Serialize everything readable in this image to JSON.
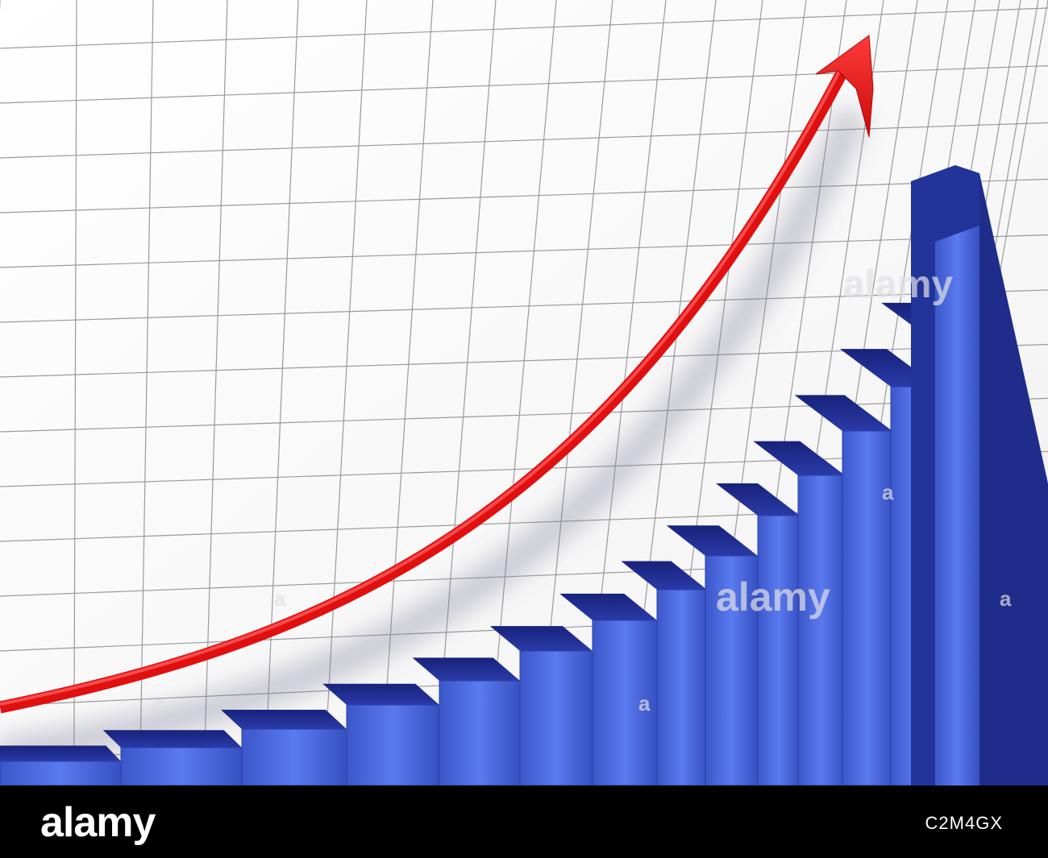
{
  "image": {
    "subject": "3d-bar-chart-with-rising-arrow",
    "bar_count": 14,
    "colors": {
      "grid_background": "#ffffff",
      "grid_line": "#9a9a9a",
      "bar_front": "#3f5fd6",
      "bar_top": "#1f2f8f",
      "bar_side": "#22349a",
      "arrow": "#e01010",
      "footer_bar": "#000000",
      "footer_text": "#ffffff"
    }
  },
  "watermarks": {
    "center": "alamy",
    "upper_right": "alamy",
    "small_a": "a"
  },
  "footer": {
    "logo": "alamy",
    "image_id": "C2M4GX"
  }
}
